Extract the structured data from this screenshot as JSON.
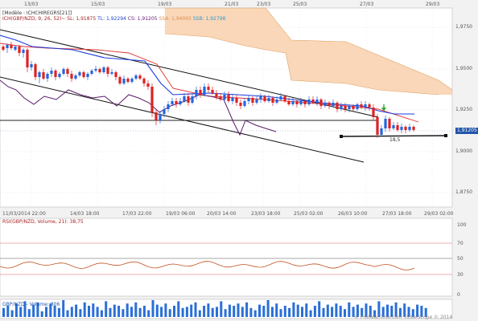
{
  "header": {
    "module_label": "[Modèle : ICHCHIREGRS[21]]",
    "indicator_line": "ICH(GBP/NZD, 9, 26, 52)~",
    "sl": "SL: 1,91875",
    "tl": "TL: 1,92294",
    "cs": "CS: 1,91205",
    "ssa": "SSA: 1,94065",
    "ssb": "SSB: 1,92798"
  },
  "top_dates": [
    "13/03",
    "15/03",
    "19/03",
    "21/03",
    "23/03",
    "25/03",
    "27/03",
    "29/03"
  ],
  "bottom_dates": [
    "11/03/2014 22:00",
    "14/03 18:00",
    "17/03 22:00",
    "19/03 06:00",
    "20/03 14:00",
    "23/03 18:00",
    "25/03 02:00",
    "26/03 10:00",
    "27/03 18:00",
    "29/03 02:00"
  ],
  "price_ticks": [
    "1,9750",
    "1,9500",
    "1,9250",
    "1,9000",
    "1,8750"
  ],
  "current_price": "1,91205",
  "annotation": "18,5",
  "rsi": {
    "label": "RSI(GBP/NZD, Volume, 21): 38,75",
    "ticks": [
      "100",
      "70",
      "50",
      "30",
      "0"
    ]
  },
  "volume": {
    "label": "GBP/NZD - Volume: 806"
  },
  "watermark": "© ProRealTime.com     Tickerscope © 2014",
  "colors": {
    "cloud": "#f7c9a0",
    "tenkan": "#1a3be0",
    "kijun": "#e03030",
    "chikou": "#5a1a6a",
    "bull": "#2266dd",
    "bear": "#dd2222",
    "volume": "#2a6fd6"
  }
}
